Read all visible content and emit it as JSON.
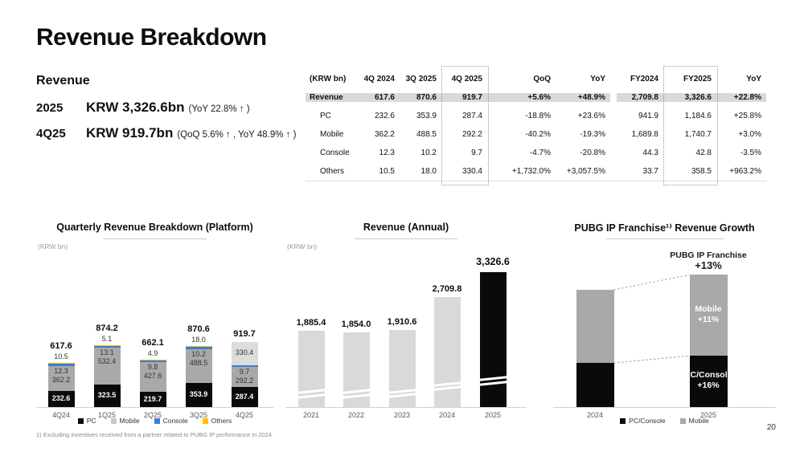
{
  "slide": {
    "title": "Revenue Breakdown",
    "page_number": "20",
    "footnote": "1) Excluding incentives received from a partner related to PUBG IP performance in 2024"
  },
  "summary": {
    "heading": "Revenue",
    "rows": [
      {
        "period": "2025",
        "amount": "KRW 3,326.6bn",
        "detail": "(YoY 22.8% ↑ )"
      },
      {
        "period": "4Q25",
        "amount": "KRW 919.7bn",
        "detail": "(QoQ 5.6% ↑ , YoY 48.9% ↑ )"
      }
    ]
  },
  "table": {
    "unit_label": "(KRW bn)",
    "columns": [
      "4Q 2024",
      "3Q 2025",
      "4Q 2025",
      "QoQ",
      "YoY",
      "FY2024",
      "FY2025",
      "YoY"
    ],
    "dotted_columns": [
      "4Q 2025",
      "FY2025"
    ],
    "rows": [
      {
        "label": "Revenue",
        "highlight": true,
        "values": [
          "617.6",
          "870.6",
          "919.7",
          "+5.6%",
          "+48.9%",
          "2,709.8",
          "3,326.6",
          "+22.8%"
        ]
      },
      {
        "label": "PC",
        "highlight": false,
        "values": [
          "232.6",
          "353.9",
          "287.4",
          "-18.8%",
          "+23.6%",
          "941.9",
          "1,184.6",
          "+25.8%"
        ]
      },
      {
        "label": "Mobile",
        "highlight": false,
        "values": [
          "362.2",
          "488.5",
          "292.2",
          "-40.2%",
          "-19.3%",
          "1,689.8",
          "1,740.7",
          "+3.0%"
        ]
      },
      {
        "label": "Console",
        "highlight": false,
        "values": [
          "12.3",
          "10.2",
          "9.7",
          "-4.7%",
          "-20.8%",
          "44.3",
          "42.8",
          "-3.5%"
        ]
      },
      {
        "label": "Others",
        "highlight": false,
        "values": [
          "10.5",
          "18.0",
          "330.4",
          "+1,732.0%",
          "+3,057.5%",
          "33.7",
          "358.5",
          "+963.2%"
        ]
      }
    ]
  },
  "colors": {
    "pc": "#0a0a0a",
    "mobile": "#a9a9a9",
    "mobile_legend": "#c9c9c9",
    "console": "#3b7dd8",
    "others": "#ffc000",
    "others_light": "#dcdcdc",
    "annual_gray": "#d9d9d9",
    "annual_black": "#0a0a0a",
    "highlight_row": "#d9d9d9"
  },
  "chart_data": [
    {
      "type": "bar",
      "stacked": true,
      "title": "Quarterly Revenue Breakdown (Platform)",
      "unit_label": "(KRW bn)",
      "categories": [
        "4Q24",
        "1Q25",
        "2Q25",
        "3Q25",
        "4Q25"
      ],
      "series": [
        {
          "name": "PC",
          "values": [
            232.6,
            323.5,
            219.7,
            353.9,
            287.4
          ],
          "labels": [
            "232.6",
            "323.5",
            "219.7",
            "353.9",
            "287.4"
          ]
        },
        {
          "name": "Mobile",
          "values": [
            362.2,
            532.4,
            427.6,
            488.5,
            292.2
          ],
          "labels": [
            "362.2",
            "532.4",
            "427.6",
            "488.5",
            "292.2"
          ]
        },
        {
          "name": "Console",
          "values": [
            12.3,
            13.1,
            9.8,
            10.2,
            9.7
          ],
          "labels": [
            "12.3",
            "13.1",
            "9.8",
            "10.2",
            "9.7"
          ]
        },
        {
          "name": "Others",
          "values": [
            10.5,
            5.1,
            4.9,
            18.0,
            330.4
          ],
          "labels": [
            "10.5",
            "5.1",
            "4.9",
            "18.0",
            "330.4"
          ]
        }
      ],
      "totals": [
        617.6,
        874.2,
        662.1,
        870.6,
        919.7
      ],
      "totals_labels": [
        "617.6",
        "874.2",
        "662.1",
        "870.6",
        "919.7"
      ],
      "legend": [
        "PC",
        "Mobile",
        "Console",
        "Others"
      ],
      "legend_position": "bottom",
      "ylim": [
        0,
        1000
      ],
      "grid": false
    },
    {
      "type": "bar",
      "title": "Revenue (Annual)",
      "unit_label": "(KRW bn)",
      "categories": [
        "2021",
        "2022",
        "2023",
        "2024",
        "2025"
      ],
      "values": [
        1885.4,
        1854.0,
        1910.6,
        2709.8,
        3326.6
      ],
      "value_labels": [
        "1,885.4",
        "1,854.0",
        "1,910.6",
        "2,709.8",
        "3,326.6"
      ],
      "bar_color_keys": [
        "annual_gray",
        "annual_gray",
        "annual_gray",
        "annual_gray",
        "annual_black"
      ],
      "axis_break": true,
      "ylim": [
        0,
        3500
      ],
      "grid": false
    },
    {
      "type": "bar",
      "stacked": true,
      "title": "PUBG IP Franchise¹⁾ Revenue Growth",
      "categories": [
        "2024",
        "2025"
      ],
      "series": [
        {
          "name": "PC/Console",
          "growth_label": "+16%",
          "relative_heights": [
            100,
            116
          ]
        },
        {
          "name": "Mobile",
          "growth_label": "+11%",
          "relative_heights": [
            100,
            111
          ]
        }
      ],
      "annotation": {
        "line1": "PUBG IP Franchise",
        "line2": "+13%"
      },
      "legend": [
        "PC/Console",
        "Mobile"
      ],
      "legend_position": "bottom",
      "grid": false
    }
  ]
}
